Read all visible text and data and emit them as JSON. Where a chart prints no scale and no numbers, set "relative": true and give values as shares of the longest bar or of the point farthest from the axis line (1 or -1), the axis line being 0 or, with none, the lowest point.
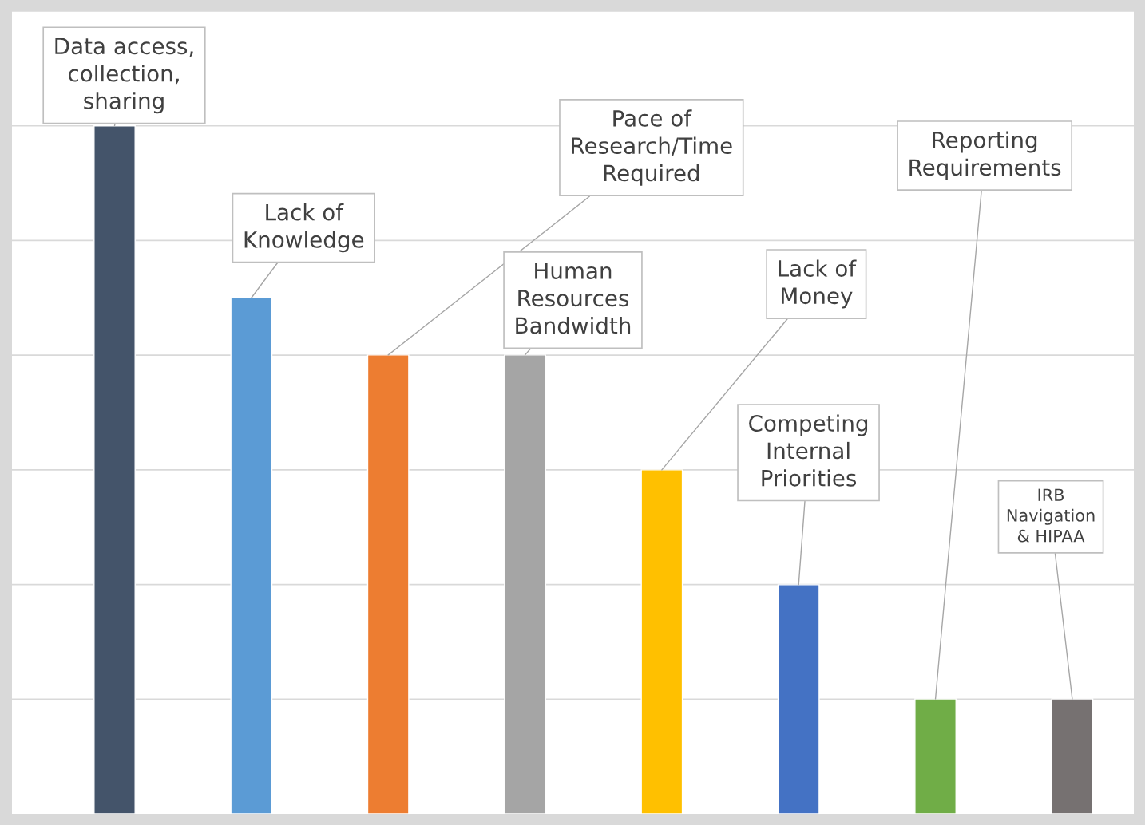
{
  "chart_data": {
    "type": "bar",
    "relative": true,
    "categories": [
      null,
      null,
      null,
      null,
      null,
      null,
      null,
      null
    ],
    "values": [
      1,
      0.75,
      0.667,
      0.667,
      0.5,
      0.333,
      0.167,
      0.167
    ],
    "colors": [
      "#44546a",
      "#5b9bd5",
      "#ed7d31",
      "#a5a5a5",
      "#ffc000",
      "#4472c4",
      "#70ad47",
      "#767171"
    ],
    "annotations": [
      "Data access,\ncollection,\nsharing",
      "Lack of\nKnowledge",
      "Pace of\nResearch/Time\nRequired",
      "Human\nResources\nBandwidth",
      "Lack of\nMoney",
      "Competing\nInternal\nPriorities",
      "Reporting\nRequirements",
      "IRB\nNavigation\n& HIPAA"
    ],
    "grid": "y"
  }
}
